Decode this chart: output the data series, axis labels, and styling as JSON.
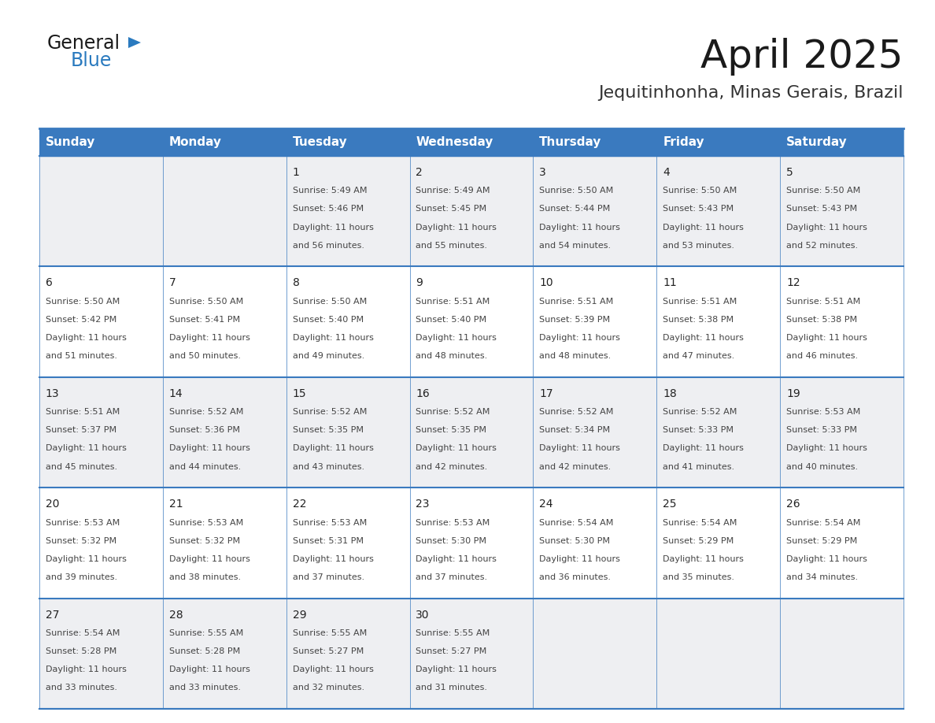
{
  "title": "April 2025",
  "subtitle": "Jequitinhonha, Minas Gerais, Brazil",
  "header_bg": "#3a7abf",
  "header_text": "#ffffff",
  "row_bg_odd": "#eeeff2",
  "row_bg_even": "#ffffff",
  "border_color": "#3a7abf",
  "days_of_week": [
    "Sunday",
    "Monday",
    "Tuesday",
    "Wednesday",
    "Thursday",
    "Friday",
    "Saturday"
  ],
  "weeks": [
    [
      {
        "day": "",
        "sunrise": "",
        "sunset": "",
        "daylight_line1": "",
        "daylight_line2": ""
      },
      {
        "day": "",
        "sunrise": "",
        "sunset": "",
        "daylight_line1": "",
        "daylight_line2": ""
      },
      {
        "day": "1",
        "sunrise": "5:49 AM",
        "sunset": "5:46 PM",
        "daylight_line1": "11 hours",
        "daylight_line2": "and 56 minutes."
      },
      {
        "day": "2",
        "sunrise": "5:49 AM",
        "sunset": "5:45 PM",
        "daylight_line1": "11 hours",
        "daylight_line2": "and 55 minutes."
      },
      {
        "day": "3",
        "sunrise": "5:50 AM",
        "sunset": "5:44 PM",
        "daylight_line1": "11 hours",
        "daylight_line2": "and 54 minutes."
      },
      {
        "day": "4",
        "sunrise": "5:50 AM",
        "sunset": "5:43 PM",
        "daylight_line1": "11 hours",
        "daylight_line2": "and 53 minutes."
      },
      {
        "day": "5",
        "sunrise": "5:50 AM",
        "sunset": "5:43 PM",
        "daylight_line1": "11 hours",
        "daylight_line2": "and 52 minutes."
      }
    ],
    [
      {
        "day": "6",
        "sunrise": "5:50 AM",
        "sunset": "5:42 PM",
        "daylight_line1": "11 hours",
        "daylight_line2": "and 51 minutes."
      },
      {
        "day": "7",
        "sunrise": "5:50 AM",
        "sunset": "5:41 PM",
        "daylight_line1": "11 hours",
        "daylight_line2": "and 50 minutes."
      },
      {
        "day": "8",
        "sunrise": "5:50 AM",
        "sunset": "5:40 PM",
        "daylight_line1": "11 hours",
        "daylight_line2": "and 49 minutes."
      },
      {
        "day": "9",
        "sunrise": "5:51 AM",
        "sunset": "5:40 PM",
        "daylight_line1": "11 hours",
        "daylight_line2": "and 48 minutes."
      },
      {
        "day": "10",
        "sunrise": "5:51 AM",
        "sunset": "5:39 PM",
        "daylight_line1": "11 hours",
        "daylight_line2": "and 48 minutes."
      },
      {
        "day": "11",
        "sunrise": "5:51 AM",
        "sunset": "5:38 PM",
        "daylight_line1": "11 hours",
        "daylight_line2": "and 47 minutes."
      },
      {
        "day": "12",
        "sunrise": "5:51 AM",
        "sunset": "5:38 PM",
        "daylight_line1": "11 hours",
        "daylight_line2": "and 46 minutes."
      }
    ],
    [
      {
        "day": "13",
        "sunrise": "5:51 AM",
        "sunset": "5:37 PM",
        "daylight_line1": "11 hours",
        "daylight_line2": "and 45 minutes."
      },
      {
        "day": "14",
        "sunrise": "5:52 AM",
        "sunset": "5:36 PM",
        "daylight_line1": "11 hours",
        "daylight_line2": "and 44 minutes."
      },
      {
        "day": "15",
        "sunrise": "5:52 AM",
        "sunset": "5:35 PM",
        "daylight_line1": "11 hours",
        "daylight_line2": "and 43 minutes."
      },
      {
        "day": "16",
        "sunrise": "5:52 AM",
        "sunset": "5:35 PM",
        "daylight_line1": "11 hours",
        "daylight_line2": "and 42 minutes."
      },
      {
        "day": "17",
        "sunrise": "5:52 AM",
        "sunset": "5:34 PM",
        "daylight_line1": "11 hours",
        "daylight_line2": "and 42 minutes."
      },
      {
        "day": "18",
        "sunrise": "5:52 AM",
        "sunset": "5:33 PM",
        "daylight_line1": "11 hours",
        "daylight_line2": "and 41 minutes."
      },
      {
        "day": "19",
        "sunrise": "5:53 AM",
        "sunset": "5:33 PM",
        "daylight_line1": "11 hours",
        "daylight_line2": "and 40 minutes."
      }
    ],
    [
      {
        "day": "20",
        "sunrise": "5:53 AM",
        "sunset": "5:32 PM",
        "daylight_line1": "11 hours",
        "daylight_line2": "and 39 minutes."
      },
      {
        "day": "21",
        "sunrise": "5:53 AM",
        "sunset": "5:32 PM",
        "daylight_line1": "11 hours",
        "daylight_line2": "and 38 minutes."
      },
      {
        "day": "22",
        "sunrise": "5:53 AM",
        "sunset": "5:31 PM",
        "daylight_line1": "11 hours",
        "daylight_line2": "and 37 minutes."
      },
      {
        "day": "23",
        "sunrise": "5:53 AM",
        "sunset": "5:30 PM",
        "daylight_line1": "11 hours",
        "daylight_line2": "and 37 minutes."
      },
      {
        "day": "24",
        "sunrise": "5:54 AM",
        "sunset": "5:30 PM",
        "daylight_line1": "11 hours",
        "daylight_line2": "and 36 minutes."
      },
      {
        "day": "25",
        "sunrise": "5:54 AM",
        "sunset": "5:29 PM",
        "daylight_line1": "11 hours",
        "daylight_line2": "and 35 minutes."
      },
      {
        "day": "26",
        "sunrise": "5:54 AM",
        "sunset": "5:29 PM",
        "daylight_line1": "11 hours",
        "daylight_line2": "and 34 minutes."
      }
    ],
    [
      {
        "day": "27",
        "sunrise": "5:54 AM",
        "sunset": "5:28 PM",
        "daylight_line1": "11 hours",
        "daylight_line2": "and 33 minutes."
      },
      {
        "day": "28",
        "sunrise": "5:55 AM",
        "sunset": "5:28 PM",
        "daylight_line1": "11 hours",
        "daylight_line2": "and 33 minutes."
      },
      {
        "day": "29",
        "sunrise": "5:55 AM",
        "sunset": "5:27 PM",
        "daylight_line1": "11 hours",
        "daylight_line2": "and 32 minutes."
      },
      {
        "day": "30",
        "sunrise": "5:55 AM",
        "sunset": "5:27 PM",
        "daylight_line1": "11 hours",
        "daylight_line2": "and 31 minutes."
      },
      {
        "day": "",
        "sunrise": "",
        "sunset": "",
        "daylight_line1": "",
        "daylight_line2": ""
      },
      {
        "day": "",
        "sunrise": "",
        "sunset": "",
        "daylight_line1": "",
        "daylight_line2": ""
      },
      {
        "day": "",
        "sunrise": "",
        "sunset": "",
        "daylight_line1": "",
        "daylight_line2": ""
      }
    ]
  ],
  "logo_text_general": "General",
  "logo_text_blue": "Blue",
  "logo_color_general": "#1a1a1a",
  "logo_color_blue": "#2a7abf",
  "logo_triangle_color": "#2a7abf",
  "title_fontsize": 36,
  "subtitle_fontsize": 16,
  "header_fontsize": 11,
  "day_num_fontsize": 10,
  "cell_text_fontsize": 8
}
